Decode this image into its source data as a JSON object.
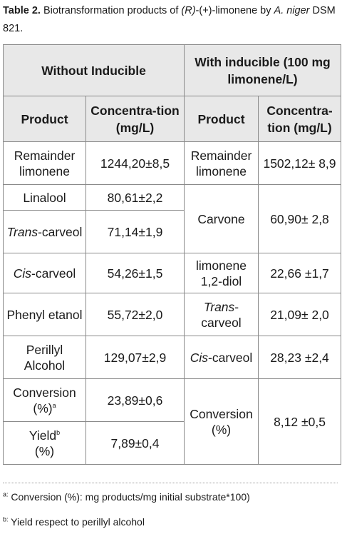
{
  "caption": {
    "label": "Table 2.",
    "text_a": " Biotransformation products of ",
    "text_r": "(R)",
    "text_b": "-(+)-limonene by ",
    "organism": "A. niger",
    "text_c": " DSM 821."
  },
  "table": {
    "group_left": "Without Inducible",
    "group_right": "With inducible (100 mg limonene/L)",
    "col_product": "Product",
    "col_concentration": "Concentra-tion (mg/L)",
    "left_rows": [
      {
        "product": "Remainder limonene",
        "value": "1244,20±8,5"
      },
      {
        "product": "Linalool",
        "value": "80,61±2,2"
      },
      {
        "product_italic": "Trans",
        "product_rest": "-carveol",
        "value": "71,14±1,9"
      },
      {
        "product_italic": "Cis",
        "product_rest": "-carveol",
        "value": "54,26±1,5"
      },
      {
        "product": "Phenyl etanol",
        "value": "55,72±2,0"
      },
      {
        "product": "Perillyl Alcohol",
        "value": "129,07±2,9"
      },
      {
        "product": "Conversion (%)",
        "sup": "a",
        "value": "23,89±0,6"
      },
      {
        "product": "Yield",
        "sup": "b",
        "product_after": "(%)",
        "value": "7,89±0,4"
      }
    ],
    "right_rows": [
      {
        "product": "Remainder limonene",
        "value": "1502,12± 8,9"
      },
      {
        "product": "Carvone",
        "value": "60,90± 2,8"
      },
      {
        "product": "limonene 1,2-diol",
        "value": "22,66 ±1,7"
      },
      {
        "product_italic": "Trans",
        "product_rest": "-carveol",
        "value": "21,09± 2,0"
      },
      {
        "product_italic": "Cis",
        "product_rest": "-carveol",
        "value": "28,23 ±2,4"
      },
      {
        "product": "Conversion (%)",
        "value": "8,12 ±0,5"
      }
    ]
  },
  "footnotes": [
    {
      "mark": "a:",
      "text": " Conversion (%): mg products/mg initial substrate*100)"
    },
    {
      "mark": "b:",
      "text": " Yield respect to perillyl alcohol"
    }
  ]
}
